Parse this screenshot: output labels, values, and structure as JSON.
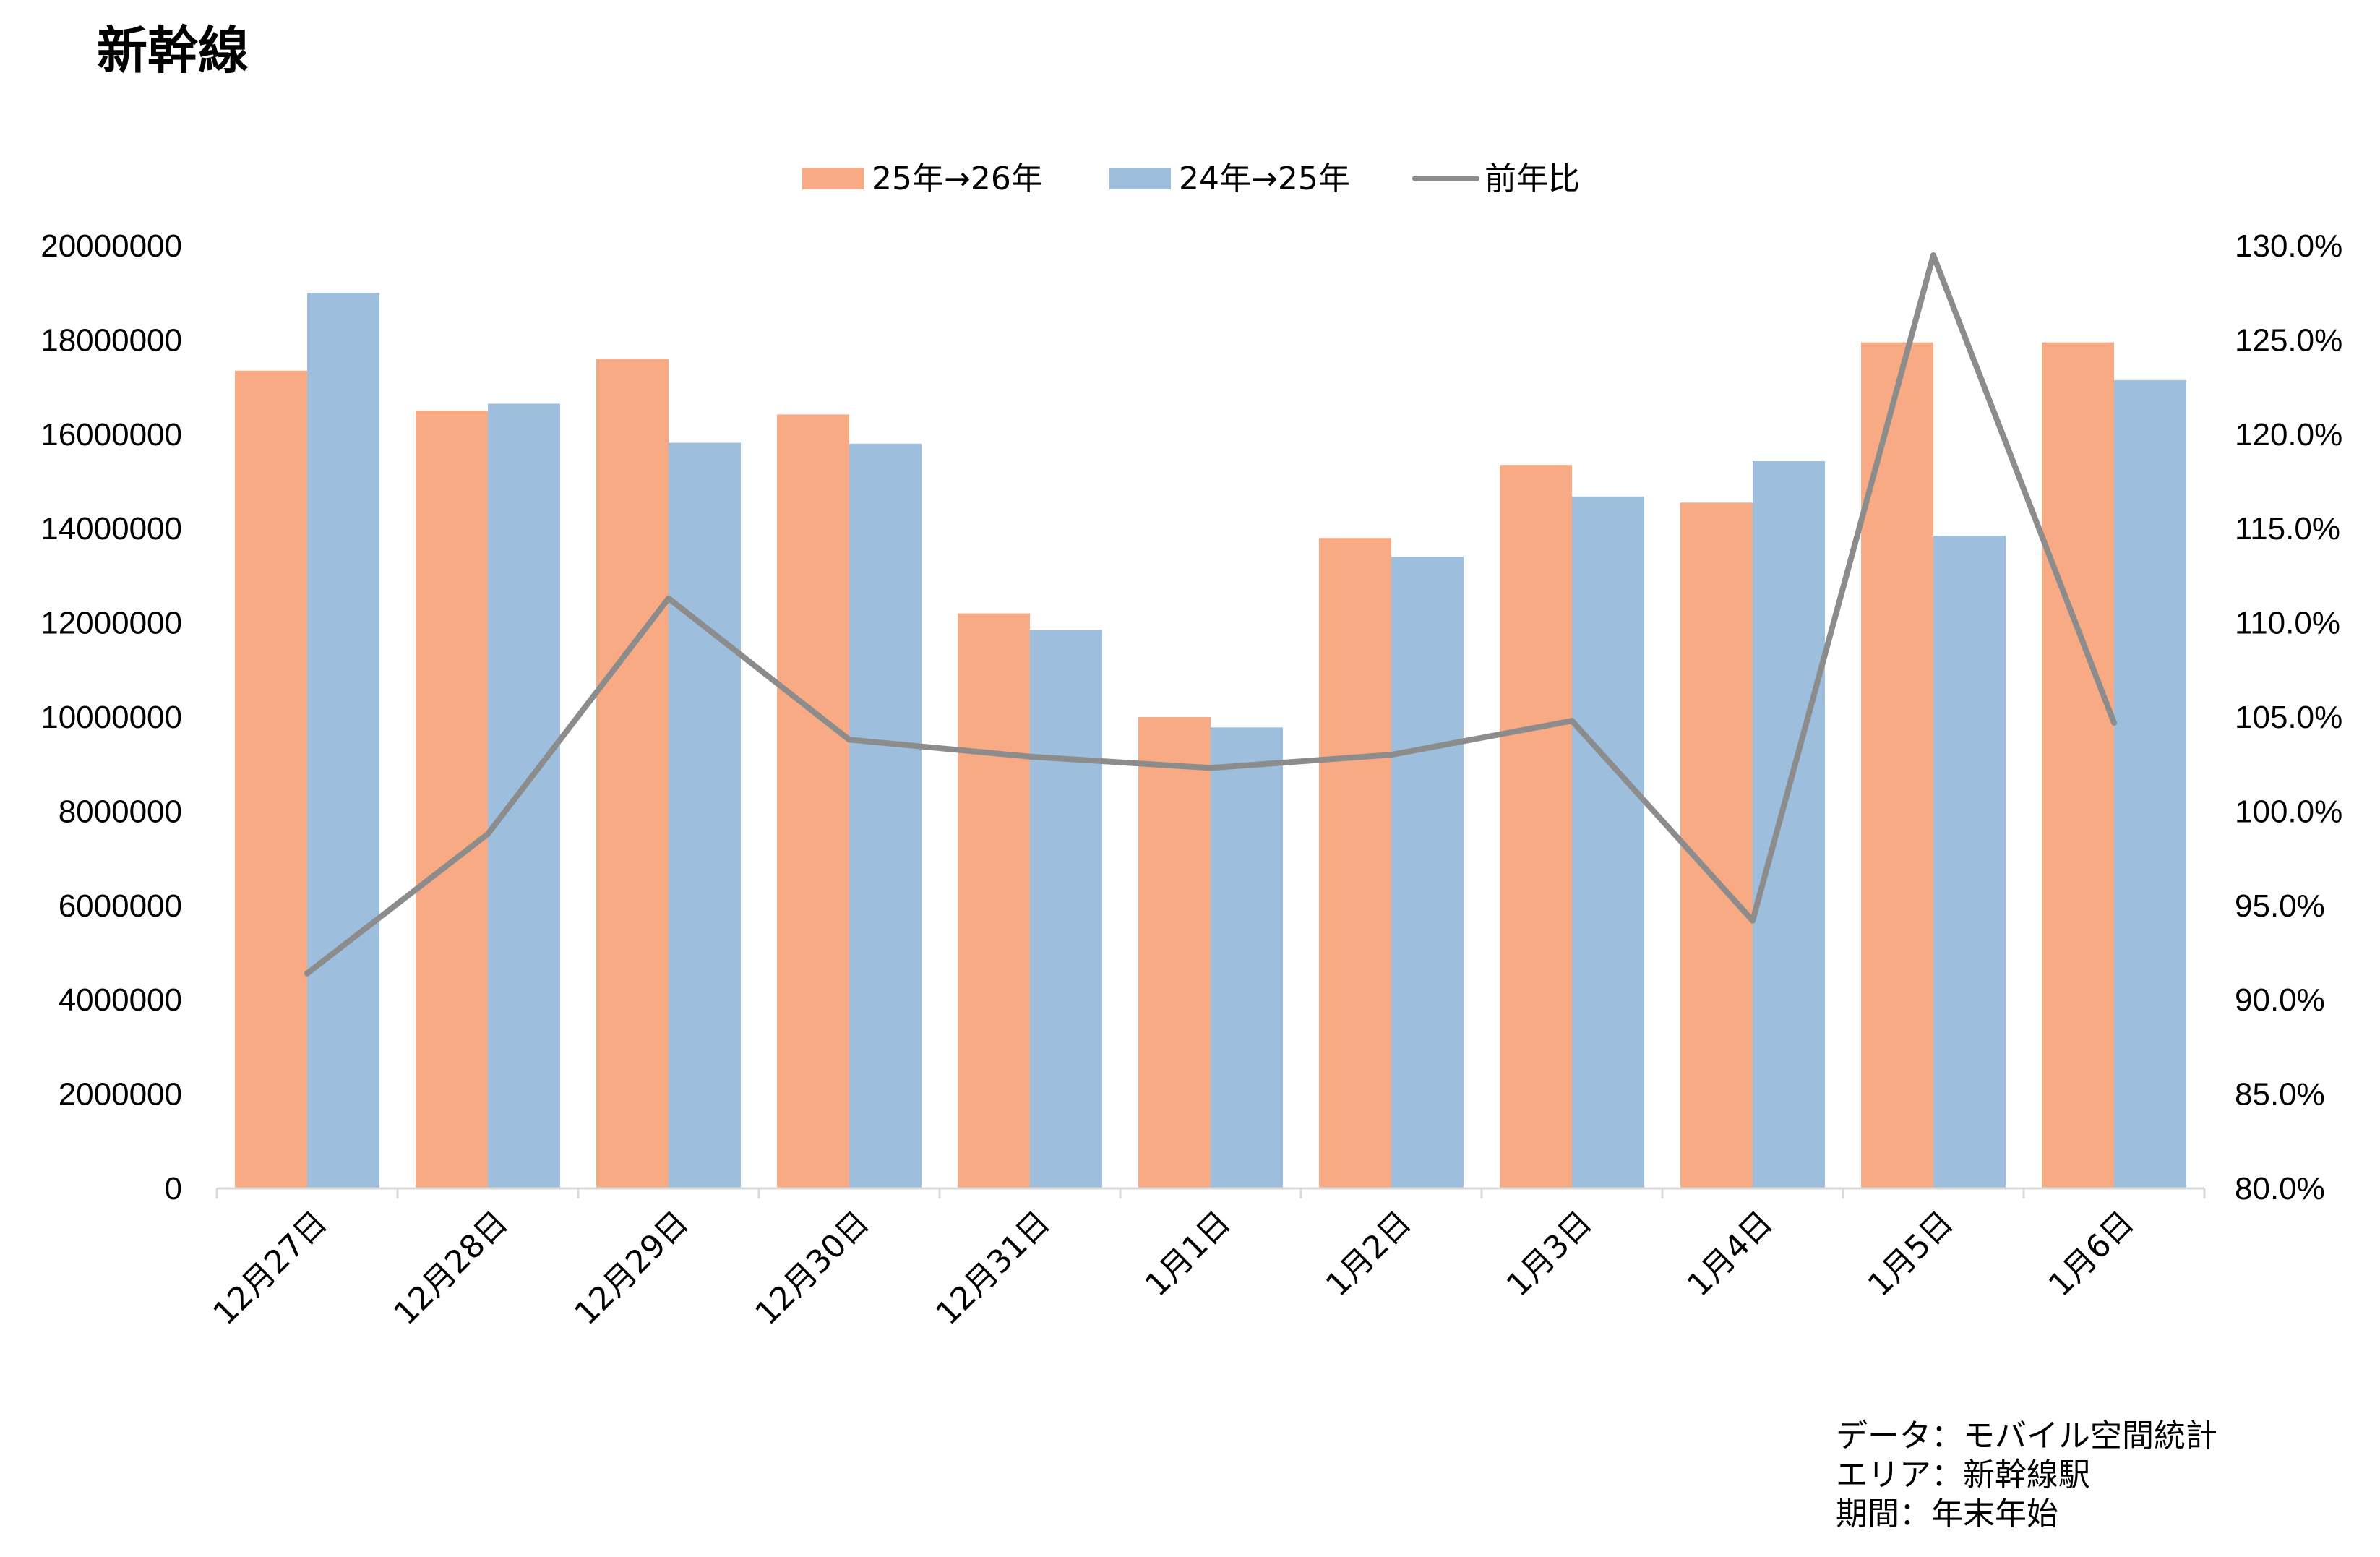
{
  "chart_data": {
    "type": "bar",
    "title": "新幹線",
    "categories": [
      "12月27日",
      "12月28日",
      "12月29日",
      "12月30日",
      "12月31日",
      "1月1日",
      "1月2日",
      "1月3日",
      "1月4日",
      "1月5日",
      "1月6日"
    ],
    "series": [
      {
        "name": "25年→26年",
        "type": "bar",
        "axis": "left",
        "color": "#F8AA84",
        "values": [
          17350000,
          16500000,
          17600000,
          16420000,
          12200000,
          10000000,
          13800000,
          15350000,
          14550000,
          17950000,
          17950000
        ]
      },
      {
        "name": "24年→25年",
        "type": "bar",
        "axis": "left",
        "color": "#9DBEDD",
        "values": [
          19000000,
          16650000,
          15820000,
          15800000,
          11850000,
          9780000,
          13400000,
          14680000,
          15430000,
          13850000,
          17150000
        ]
      },
      {
        "name": "前年比",
        "type": "line",
        "axis": "right",
        "color": "#8C8C8C",
        "values": [
          91.4,
          98.8,
          111.3,
          103.8,
          102.9,
          102.3,
          103.0,
          104.8,
          94.2,
          129.5,
          104.7
        ]
      }
    ],
    "yleft": {
      "min": 0,
      "max": 20000000,
      "step": 2000000,
      "ticks": [
        "0",
        "2000000",
        "4000000",
        "6000000",
        "8000000",
        "10000000",
        "12000000",
        "14000000",
        "16000000",
        "18000000",
        "20000000"
      ]
    },
    "yright": {
      "min": 80,
      "max": 130,
      "step": 5,
      "ticks": [
        "80.0%",
        "85.0%",
        "90.0%",
        "95.0%",
        "100.0%",
        "105.0%",
        "110.0%",
        "115.0%",
        "120.0%",
        "125.0%",
        "130.0%"
      ]
    },
    "grid": false,
    "legend_position": "top-center"
  },
  "source_lines": [
    "データ：モバイル空間統計",
    "エリア：新幹線駅",
    "期間：年末年始"
  ]
}
